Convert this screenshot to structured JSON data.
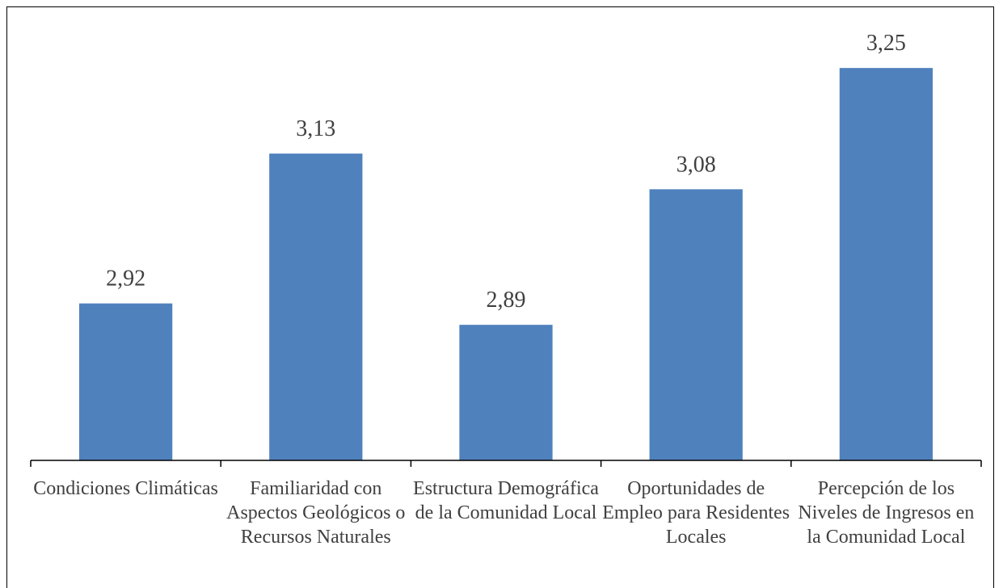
{
  "chart_data": {
    "type": "bar",
    "categories": [
      "Condiciones Climáticas",
      "Familiaridad con Aspectos Geológicos o Recursos Naturales",
      "Estructura Demográfica de la Comunidad Local",
      "Oportunidades de Empleo para Residentes Locales",
      "Percepción de los Niveles de Ingresos en la Comunidad Local"
    ],
    "values": [
      2.92,
      3.13,
      2.89,
      3.08,
      3.25
    ],
    "value_labels": [
      "2,92",
      "3,13",
      "2,89",
      "3,08",
      "3,25"
    ],
    "color": "#4f81bd",
    "ylim": [
      2.7,
      3.3
    ]
  }
}
